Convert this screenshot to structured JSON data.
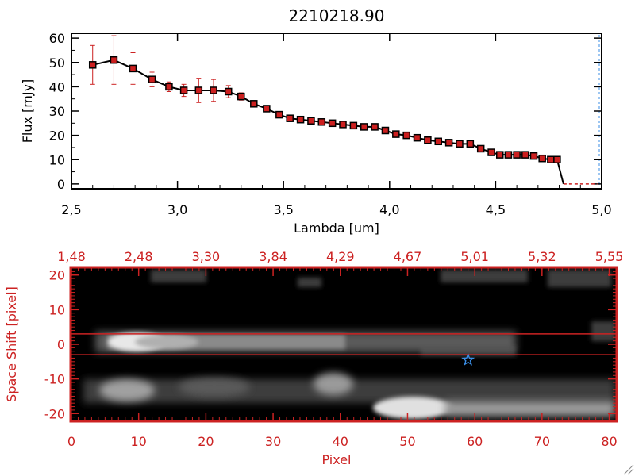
{
  "title": "2210218.90",
  "colors": {
    "axis": "#000000",
    "accent": "#cc2222",
    "marker": "#cc1f1f",
    "star": "#3a8ee6"
  },
  "chart_data": [
    {
      "type": "line",
      "title": "2210218.90",
      "xlabel": "Lambda [um]",
      "ylabel": "Flux [mJy]",
      "xlim": [
        2.5,
        5.0
      ],
      "ylim": [
        -2,
        62
      ],
      "xticks": [
        "2.5",
        "3.0",
        "3.5",
        "4.0",
        "4.5",
        "5.0"
      ],
      "yticks": [
        "0",
        "10",
        "20",
        "30",
        "40",
        "50",
        "60"
      ],
      "series": [
        {
          "x": [
            2.6,
            2.7,
            2.79,
            2.88,
            2.96,
            3.03,
            3.1,
            3.17,
            3.24,
            3.3,
            3.36,
            3.42,
            3.48,
            3.53,
            3.58,
            3.63,
            3.68,
            3.73,
            3.78,
            3.83,
            3.88,
            3.93,
            3.98,
            4.03,
            4.08,
            4.13,
            4.18,
            4.23,
            4.28,
            4.33,
            4.38,
            4.43,
            4.48,
            4.52,
            4.56,
            4.6,
            4.64,
            4.68,
            4.72,
            4.76,
            4.79,
            4.82,
            4.86,
            4.9,
            4.94,
            4.98
          ],
          "y": [
            49,
            51,
            47.5,
            43,
            40,
            38.5,
            38.5,
            38.5,
            38,
            36,
            33,
            31,
            28.5,
            27,
            26.5,
            26,
            25.5,
            25,
            24.5,
            24,
            23.5,
            23.5,
            22,
            20.5,
            20,
            19,
            18,
            17.5,
            17,
            16.5,
            16.5,
            14.5,
            13,
            12,
            12,
            12,
            12,
            11.5,
            10.5,
            10,
            10,
            0,
            0,
            0,
            0,
            0
          ],
          "yerr": [
            8,
            10,
            6.5,
            3,
            2,
            2.5,
            5,
            4.5,
            2.5,
            1.5,
            1,
            0.5,
            0.5,
            0.5,
            0.5,
            0.5,
            0.5,
            0.5,
            0.5,
            0.5,
            0.5,
            0.5,
            0.5,
            0.5,
            0.5,
            0.5,
            0.5,
            0.5,
            0.5,
            0.5,
            0.5,
            0.5,
            0.5,
            0.5,
            0.5,
            0.5,
            0.5,
            0.5,
            0.5,
            0.5,
            0.5,
            0,
            0,
            0,
            0,
            0
          ]
        }
      ],
      "grid": false
    },
    {
      "type": "heatmap",
      "xlabel": "Pixel",
      "ylabel": "Space Shift [pixel]",
      "xlim": [
        0,
        81
      ],
      "ylim": [
        -22,
        22
      ],
      "xticks": [
        "0",
        "10",
        "20",
        "30",
        "40",
        "50",
        "60",
        "70",
        "80"
      ],
      "yticks": [
        "-20",
        "-10",
        "0",
        "10",
        "20"
      ],
      "top_axis_ticks": [
        "1.48",
        "2.48",
        "3.30",
        "3.84",
        "4.29",
        "4.67",
        "5.01",
        "5.32",
        "5.55"
      ],
      "extraction_aperture": [
        -3,
        3
      ],
      "source_marker": {
        "pixel": 59,
        "shift": -4.5,
        "symbol": "star"
      },
      "colormap": "grayscale",
      "traces": [
        {
          "shift": 1,
          "from": 5,
          "to": 65
        },
        {
          "shift": -11,
          "from": 0,
          "to": 80
        }
      ],
      "grid": false
    }
  ]
}
